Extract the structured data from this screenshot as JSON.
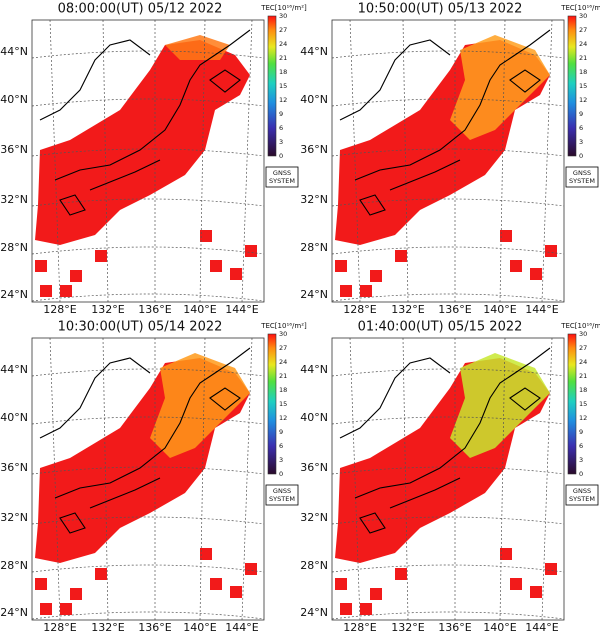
{
  "panels": [
    {
      "title": "08:00:00(UT) 05/12 2022"
    },
    {
      "title": "10:50:00(UT) 05/13 2022"
    },
    {
      "title": "10:30:00(UT) 05/14 2022"
    },
    {
      "title": "01:40:00(UT) 05/15 2022"
    }
  ],
  "latitude_labels": [
    "44°N",
    "40°N",
    "36°N",
    "32°N",
    "28°N",
    "24°N"
  ],
  "longitude_labels": [
    "128°E",
    "132°E",
    "136°E",
    "140°E",
    "144°E"
  ],
  "colorbar": {
    "label": "TEC[10¹⁶/m²]",
    "ticks": [
      30,
      27,
      24,
      21,
      18,
      15,
      12,
      9,
      6,
      3,
      0
    ]
  },
  "badge": [
    "GNSS",
    "SYSTEM"
  ]
}
